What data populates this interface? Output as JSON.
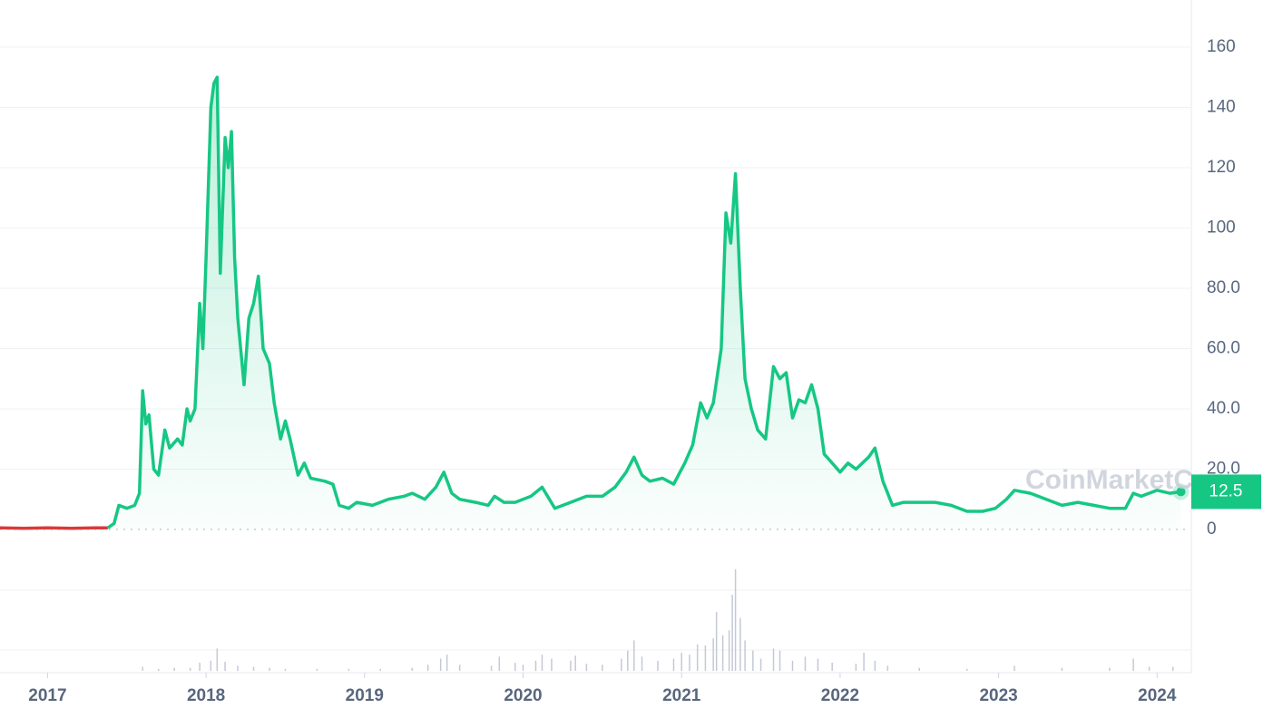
{
  "chart_data": [
    {
      "type": "line",
      "xlim": [
        2016.7,
        2024.21
      ],
      "xticks": [
        2017,
        2018,
        2019,
        2020,
        2021,
        2022,
        2023,
        2024
      ],
      "ylim": [
        0,
        175
      ],
      "yticks": [
        0,
        {
          "value": 20,
          "label": "20.0"
        },
        {
          "value": 40,
          "label": "40.0"
        },
        {
          "value": 60,
          "label": "60.0"
        },
        {
          "value": 80,
          "label": "80.0"
        },
        100,
        120,
        140,
        160
      ],
      "grid": true,
      "last_price_label": "12.5",
      "watermark": "CoinMarketCap",
      "series": [
        {
          "color": "#d83a3a",
          "x": [
            2016.7,
            2016.85,
            2017.0,
            2017.15,
            2017.3,
            2017.38
          ],
          "values": [
            0.5,
            0.4,
            0.5,
            0.4,
            0.5,
            0.5
          ]
        },
        {
          "color": "#16c784",
          "x": [
            2017.38,
            2017.42,
            2017.45,
            2017.5,
            2017.55,
            2017.58,
            2017.6,
            2017.62,
            2017.64,
            2017.67,
            2017.7,
            2017.74,
            2017.77,
            2017.82,
            2017.85,
            2017.88,
            2017.9,
            2017.93,
            2017.96,
            2017.98,
            2018.0,
            2018.03,
            2018.05,
            2018.07,
            2018.09,
            2018.12,
            2018.14,
            2018.16,
            2018.18,
            2018.2,
            2018.24,
            2018.27,
            2018.3,
            2018.33,
            2018.36,
            2018.4,
            2018.43,
            2018.47,
            2018.5,
            2018.53,
            2018.58,
            2018.62,
            2018.66,
            2018.75,
            2018.8,
            2018.84,
            2018.9,
            2018.95,
            2019.05,
            2019.15,
            2019.25,
            2019.3,
            2019.38,
            2019.45,
            2019.5,
            2019.55,
            2019.6,
            2019.7,
            2019.78,
            2019.82,
            2019.88,
            2019.95,
            2020.05,
            2020.12,
            2020.2,
            2020.3,
            2020.4,
            2020.5,
            2020.58,
            2020.65,
            2020.7,
            2020.75,
            2020.8,
            2020.88,
            2020.95,
            2021.02,
            2021.07,
            2021.12,
            2021.16,
            2021.2,
            2021.25,
            2021.28,
            2021.31,
            2021.34,
            2021.37,
            2021.4,
            2021.44,
            2021.48,
            2021.53,
            2021.58,
            2021.62,
            2021.66,
            2021.7,
            2021.74,
            2021.78,
            2021.82,
            2021.86,
            2021.9,
            2021.95,
            2022.0,
            2022.05,
            2022.1,
            2022.18,
            2022.22,
            2022.27,
            2022.33,
            2022.4,
            2022.5,
            2022.6,
            2022.7,
            2022.8,
            2022.9,
            2022.98,
            2023.05,
            2023.1,
            2023.2,
            2023.3,
            2023.4,
            2023.5,
            2023.6,
            2023.7,
            2023.8,
            2023.85,
            2023.9,
            2024.0,
            2024.08,
            2024.15
          ],
          "values": [
            0.5,
            2,
            8,
            7,
            8,
            12,
            46,
            35,
            38,
            20,
            18,
            33,
            27,
            30,
            28,
            40,
            36,
            40,
            75,
            60,
            90,
            140,
            148,
            150,
            85,
            130,
            120,
            132,
            90,
            70,
            48,
            70,
            75,
            84,
            60,
            55,
            42,
            30,
            36,
            30,
            18,
            22,
            17,
            16,
            15,
            8,
            7,
            9,
            8,
            10,
            11,
            12,
            10,
            14,
            19,
            12,
            10,
            9,
            8,
            11,
            9,
            9,
            11,
            14,
            7,
            9,
            11,
            11,
            14,
            19,
            24,
            18,
            16,
            17,
            15,
            22,
            28,
            42,
            37,
            42,
            60,
            105,
            95,
            118,
            80,
            50,
            40,
            33,
            30,
            54,
            50,
            52,
            37,
            43,
            42,
            48,
            40,
            25,
            22,
            19,
            22,
            20,
            24,
            27,
            16,
            8,
            9,
            9,
            9,
            8,
            6,
            6,
            7,
            10,
            13,
            12,
            10,
            8,
            9,
            8,
            7,
            7,
            12,
            11,
            13,
            12,
            12.5
          ]
        }
      ]
    },
    {
      "type": "bar",
      "color": "#c5c9d6",
      "xlim": [
        2016.7,
        2024.21
      ],
      "ylim": [
        0,
        100
      ],
      "x": [
        2017.6,
        2017.7,
        2017.8,
        2017.9,
        2017.96,
        2018.03,
        2018.07,
        2018.12,
        2018.2,
        2018.3,
        2018.4,
        2018.5,
        2018.7,
        2018.9,
        2019.1,
        2019.3,
        2019.4,
        2019.48,
        2019.52,
        2019.6,
        2019.8,
        2019.85,
        2019.95,
        2020.0,
        2020.08,
        2020.12,
        2020.18,
        2020.3,
        2020.33,
        2020.4,
        2020.5,
        2020.62,
        2020.66,
        2020.7,
        2020.75,
        2020.85,
        2020.95,
        2021.0,
        2021.05,
        2021.1,
        2021.15,
        2021.2,
        2021.22,
        2021.26,
        2021.3,
        2021.32,
        2021.34,
        2021.37,
        2021.4,
        2021.45,
        2021.5,
        2021.58,
        2021.62,
        2021.7,
        2021.78,
        2021.86,
        2021.95,
        2022.1,
        2022.15,
        2022.22,
        2022.3,
        2022.5,
        2022.8,
        2023.1,
        2023.4,
        2023.7,
        2023.85,
        2023.95,
        2024.1
      ],
      "values": [
        4,
        2,
        3,
        3,
        8,
        10,
        22,
        9,
        5,
        4,
        3,
        2,
        2,
        2,
        2,
        3,
        6,
        12,
        16,
        6,
        5,
        14,
        8,
        6,
        10,
        16,
        12,
        10,
        15,
        7,
        6,
        12,
        20,
        30,
        14,
        10,
        12,
        18,
        16,
        26,
        25,
        32,
        58,
        35,
        40,
        75,
        100,
        52,
        30,
        20,
        12,
        22,
        20,
        10,
        14,
        12,
        8,
        7,
        18,
        10,
        5,
        3,
        2,
        5,
        3,
        3,
        12,
        4,
        4
      ]
    }
  ]
}
